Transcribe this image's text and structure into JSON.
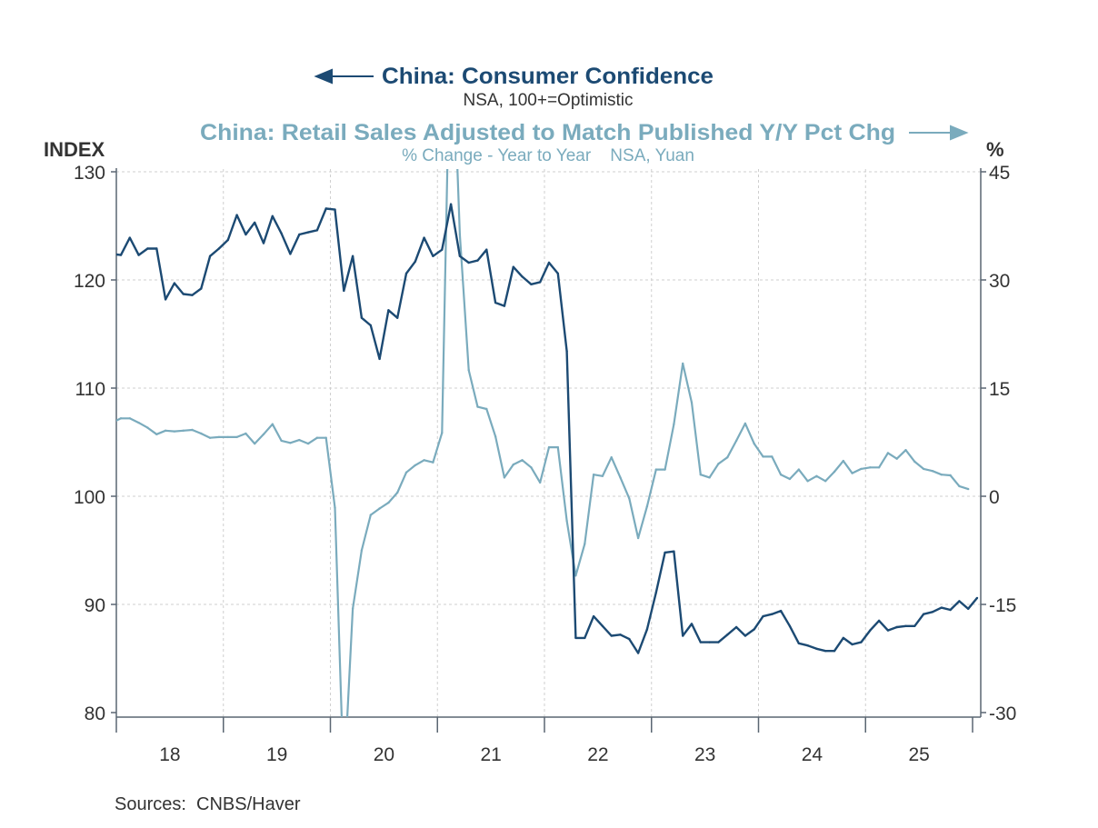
{
  "chart_data": {
    "type": "line",
    "title_left": "China: Consumer Confidence",
    "subtitle_left": "NSA, 100+=Optimistic",
    "title_right": "China: Retail Sales Adjusted to Match Published Y/Y Pct Chg",
    "subtitle_right": "% Change - Year to Year    NSA, Yuan",
    "ylabel_left": "INDEX",
    "ylabel_right": "%",
    "source": "Sources:  CNBS/Haver",
    "x_start": "2017-12",
    "x_frequency": "monthly",
    "x_tick_labels": [
      "18",
      "19",
      "20",
      "21",
      "22",
      "23",
      "24",
      "25"
    ],
    "ylim_left": [
      80,
      130
    ],
    "yticks_left": [
      "130",
      "120",
      "110",
      "100",
      "90",
      "80"
    ],
    "ylim_right": [
      -30,
      45
    ],
    "yticks_right": [
      "45",
      "30",
      "15",
      "0",
      "-15",
      "-30"
    ],
    "grid": true,
    "series": [
      {
        "name": "China: Consumer Confidence",
        "axis": "left",
        "color": "#1c4a73",
        "values": [
          122.4,
          122.3,
          123.9,
          122.3,
          122.9,
          122.9,
          118.2,
          119.7,
          118.7,
          118.6,
          119.2,
          122.2,
          122.9,
          123.7,
          126.0,
          124.2,
          125.3,
          123.4,
          125.9,
          124.3,
          122.4,
          124.2,
          124.4,
          124.6,
          126.6,
          126.5,
          119.0,
          122.2,
          116.5,
          115.8,
          112.7,
          117.2,
          116.5,
          120.6,
          121.7,
          123.9,
          122.2,
          122.8,
          127.0,
          122.2,
          121.6,
          121.8,
          122.8,
          117.9,
          117.6,
          121.2,
          120.3,
          119.6,
          119.8,
          121.6,
          120.6,
          113.4,
          86.9,
          86.9,
          88.9,
          88.0,
          87.1,
          87.2,
          86.8,
          85.5,
          87.7,
          91.1,
          94.8,
          94.9,
          87.1,
          88.2,
          86.5,
          86.5,
          86.5,
          87.2,
          87.9,
          87.1,
          87.7,
          88.9,
          89.1,
          89.4,
          88.0,
          86.4,
          86.2,
          85.9,
          85.7,
          85.7,
          86.9,
          86.3,
          86.5,
          87.6,
          88.5,
          87.6,
          87.9,
          88.0,
          88.0,
          89.1,
          89.3,
          89.7,
          89.5,
          90.3,
          89.6,
          90.6
        ]
      },
      {
        "name": "China: Retail Sales Adjusted to Match Published Y/Y Pct Chg",
        "axis": "right",
        "color": "#7aabbd",
        "values": [
          10.2,
          10.8,
          10.8,
          10.2,
          9.5,
          8.6,
          9.1,
          9.0,
          9.1,
          9.2,
          8.7,
          8.1,
          8.2,
          8.2,
          8.2,
          8.7,
          7.3,
          8.6,
          10.0,
          7.7,
          7.4,
          7.8,
          7.3,
          8.1,
          8.1,
          -1.6,
          -40.0,
          -15.6,
          -7.5,
          -2.6,
          -1.7,
          -0.9,
          0.5,
          3.3,
          4.3,
          5.0,
          4.7,
          8.8,
          70.0,
          36.3,
          17.5,
          12.4,
          12.1,
          8.3,
          2.6,
          4.4,
          5.0,
          4.0,
          1.9,
          6.8,
          6.8,
          -3.4,
          -11.0,
          -6.6,
          3.0,
          2.8,
          5.4,
          2.6,
          -0.3,
          -5.8,
          -1.4,
          3.7,
          3.7,
          10.0,
          18.4,
          13.0,
          3.0,
          2.6,
          4.5,
          5.4,
          7.7,
          10.1,
          7.3,
          5.5,
          5.5,
          3.0,
          2.4,
          3.7,
          2.1,
          2.8,
          2.1,
          3.4,
          4.9,
          3.2,
          3.8,
          4.0,
          4.0,
          6.0,
          5.2,
          6.4,
          4.8,
          3.8,
          3.5,
          3.0,
          2.9,
          1.4,
          1.0
        ]
      }
    ]
  }
}
